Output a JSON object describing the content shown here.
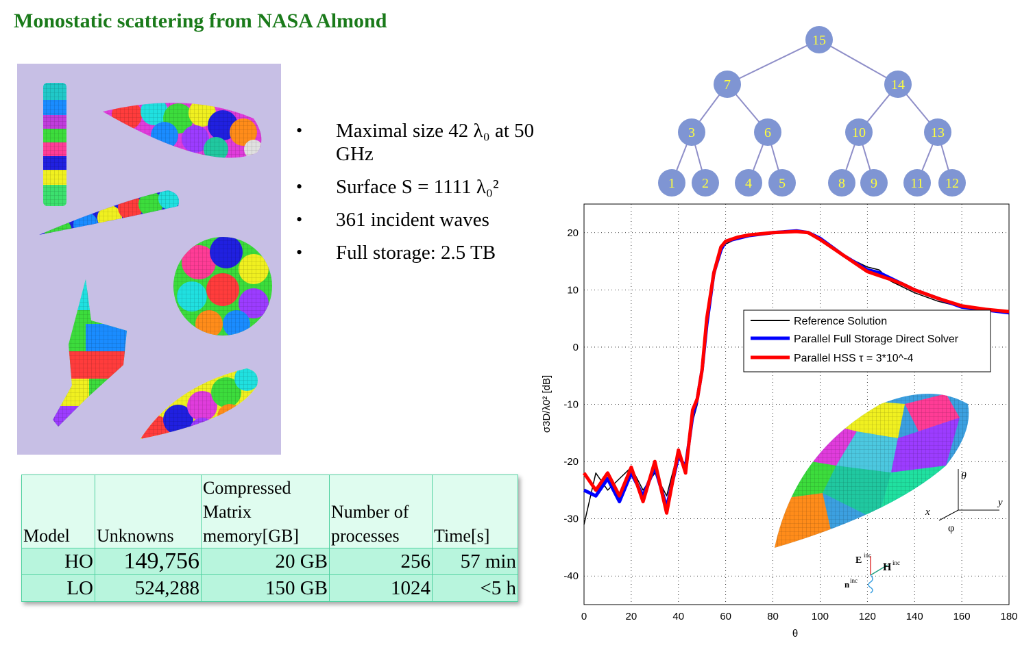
{
  "title": "Monostatic scattering from NASA Almond",
  "bullets": [
    {
      "text": "Maximal size 42 λ₀ at 50 GHz"
    },
    {
      "text": "Surface S = 1111 λ₀²"
    },
    {
      "text": "361 incident waves"
    },
    {
      "text": "Full storage: 2.5 TB"
    }
  ],
  "table": {
    "headers": [
      "Model",
      "Unknowns",
      "Compressed Matrix memory[GB]",
      "Number of processes",
      "Time[s]"
    ],
    "rows": [
      [
        "HO",
        "149,756",
        "20 GB",
        "256",
        "57 min"
      ],
      [
        "LO",
        "524,288",
        "150 GB",
        "1024",
        "<5 h"
      ]
    ]
  },
  "tree": {
    "node_color": "#7f95d3",
    "edge_color": "#8e8ec8",
    "label_color": "#ffff3c",
    "levels": [
      [
        "15"
      ],
      [
        "7",
        "14"
      ],
      [
        "3",
        "6",
        "10",
        "13"
      ],
      [
        "1",
        "2",
        "4",
        "5",
        "8",
        "9",
        "11",
        "12"
      ]
    ]
  },
  "chart_data": {
    "type": "line",
    "title": "",
    "xlabel": "θ",
    "ylabel": "σ3D/λ0² [dB]",
    "xlim": [
      0,
      180
    ],
    "ylim": [
      -45,
      25
    ],
    "xticks": [
      0,
      20,
      40,
      60,
      80,
      100,
      120,
      140,
      160,
      180
    ],
    "yticks": [
      20,
      10,
      0,
      -10,
      -20,
      -30,
      -40
    ],
    "grid": true,
    "legend_position": "upper-right",
    "series": [
      {
        "name": "Reference Solution",
        "color": "#000000",
        "x": [
          0,
          5,
          10,
          15,
          20,
          25,
          30,
          35,
          40,
          43,
          46,
          48,
          50,
          52,
          55,
          58,
          60,
          65,
          70,
          80,
          90,
          95,
          100,
          110,
          120,
          125,
          130,
          135,
          140,
          150,
          160,
          170,
          180
        ],
        "y": [
          -31,
          -22,
          -25,
          -23,
          -21,
          -25,
          -22,
          -26,
          -18,
          -22,
          -13,
          -10,
          -5,
          3,
          12,
          17,
          18,
          19,
          19.5,
          20,
          20.3,
          20,
          19,
          16,
          14,
          13.5,
          11.5,
          10.5,
          9.5,
          8,
          7,
          6.5,
          6
        ]
      },
      {
        "name": "Parallel Full Storage Direct Solver",
        "color": "#0000ff",
        "x": [
          0,
          5,
          10,
          15,
          20,
          25,
          30,
          35,
          40,
          43,
          46,
          48,
          50,
          52,
          55,
          58,
          60,
          65,
          70,
          80,
          90,
          95,
          100,
          110,
          120,
          125,
          130,
          135,
          140,
          150,
          160,
          170,
          180
        ],
        "y": [
          -25,
          -26,
          -23,
          -27,
          -22,
          -26,
          -21,
          -28,
          -19,
          -21,
          -12,
          -9,
          -4,
          4,
          13,
          17,
          18.5,
          19,
          19.5,
          20,
          20.3,
          20,
          19,
          16,
          13.5,
          13,
          12,
          11,
          10,
          8.5,
          7,
          6.5,
          6
        ]
      },
      {
        "name": "Parallel HSS τ = 3*10^-4",
        "color": "#ff0000",
        "x": [
          0,
          5,
          10,
          15,
          20,
          25,
          30,
          35,
          40,
          43,
          46,
          48,
          50,
          52,
          55,
          58,
          60,
          65,
          70,
          80,
          90,
          95,
          100,
          110,
          120,
          125,
          130,
          135,
          140,
          150,
          160,
          170,
          180
        ],
        "y": [
          -22,
          -25,
          -22,
          -26,
          -21,
          -27,
          -20,
          -29,
          -18,
          -22,
          -11,
          -9,
          -4,
          5,
          13,
          17.5,
          18.5,
          19.2,
          19.6,
          20,
          20.2,
          20,
          18.8,
          16,
          13.2,
          12.5,
          11.8,
          11,
          10,
          8.5,
          7.2,
          6.6,
          6.2
        ]
      }
    ],
    "legend": [
      "Reference Solution",
      "Parallel Full Storage Direct Solver",
      "Parallel HSS τ = 3*10^-4"
    ],
    "inset_labels": {
      "theta": "θ",
      "phi": "φ",
      "x": "x",
      "y": "y",
      "E": "E",
      "E_sup": "inc",
      "H": "H",
      "H_sup": "inc",
      "n": "n",
      "n_sup": "inc"
    }
  }
}
